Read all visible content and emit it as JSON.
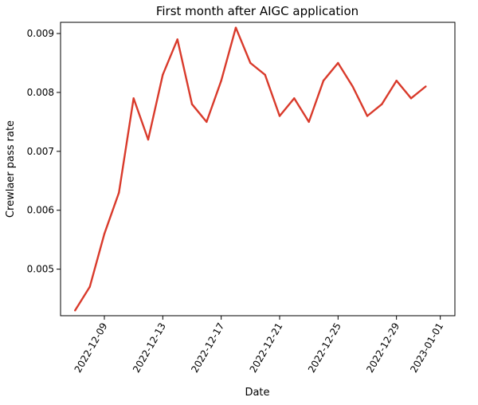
{
  "chart_data": {
    "type": "line",
    "title": "First month after AIGC application",
    "xlabel": "Date",
    "ylabel": "Crewlaer pass rate",
    "x_tick_labels": [
      "2022-12-09",
      "2022-12-13",
      "2022-12-17",
      "2022-12-21",
      "2022-12-25",
      "2022-12-29",
      "2023-01-01"
    ],
    "y_tick_labels": [
      "0.005",
      "0.006",
      "0.007",
      "0.008",
      "0.009"
    ],
    "y_ticks": [
      0.005,
      0.006,
      0.007,
      0.008,
      0.009
    ],
    "xlim": [
      "2022-12-06",
      "2023-01-02"
    ],
    "ylim": [
      0.00421,
      0.00919
    ],
    "grid": false,
    "series": [
      {
        "color": "#d93a2b",
        "points": [
          {
            "x": "2022-12-07",
            "y": 0.0043
          },
          {
            "x": "2022-12-08",
            "y": 0.0047
          },
          {
            "x": "2022-12-09",
            "y": 0.0056
          },
          {
            "x": "2022-12-10",
            "y": 0.0063
          },
          {
            "x": "2022-12-11",
            "y": 0.0079
          },
          {
            "x": "2022-12-12",
            "y": 0.0072
          },
          {
            "x": "2022-12-13",
            "y": 0.0083
          },
          {
            "x": "2022-12-14",
            "y": 0.0089
          },
          {
            "x": "2022-12-15",
            "y": 0.0078
          },
          {
            "x": "2022-12-16",
            "y": 0.0075
          },
          {
            "x": "2022-12-17",
            "y": 0.0082
          },
          {
            "x": "2022-12-18",
            "y": 0.0091
          },
          {
            "x": "2022-12-19",
            "y": 0.0085
          },
          {
            "x": "2022-12-20",
            "y": 0.0083
          },
          {
            "x": "2022-12-21",
            "y": 0.0076
          },
          {
            "x": "2022-12-22",
            "y": 0.0079
          },
          {
            "x": "2022-12-23",
            "y": 0.0075
          },
          {
            "x": "2022-12-24",
            "y": 0.0082
          },
          {
            "x": "2022-12-25",
            "y": 0.0085
          },
          {
            "x": "2022-12-26",
            "y": 0.0081
          },
          {
            "x": "2022-12-27",
            "y": 0.0076
          },
          {
            "x": "2022-12-28",
            "y": 0.0078
          },
          {
            "x": "2022-12-29",
            "y": 0.0082
          },
          {
            "x": "2022-12-30",
            "y": 0.0079
          },
          {
            "x": "2022-12-31",
            "y": 0.0081
          }
        ]
      }
    ]
  }
}
